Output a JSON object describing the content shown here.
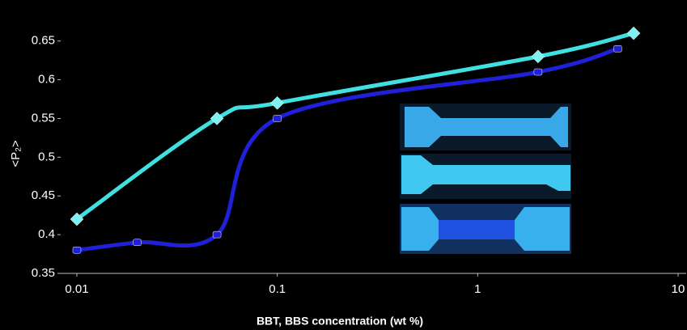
{
  "chart_data": {
    "type": "line",
    "x_label": "BBT, BBS concentration (wt %)",
    "y_label": "<P₂>",
    "xscale": "log",
    "xlim": [
      0.01,
      10
    ],
    "xticks": [
      0.01,
      0.1,
      1,
      10
    ],
    "ylim": [
      0.35,
      0.68
    ],
    "yticks": [
      0.35,
      0.4,
      0.45,
      0.5,
      0.55,
      0.6,
      0.65
    ],
    "series": [
      {
        "color": "#40e0e0",
        "marker": "diamond",
        "x": [
          0.01,
          0.05,
          0.1,
          2,
          6
        ],
        "values": [
          0.42,
          0.55,
          0.57,
          0.63,
          0.66
        ]
      },
      {
        "color": "#2020d8",
        "marker": "circle",
        "x": [
          0.01,
          0.02,
          0.05,
          0.1,
          2,
          5
        ],
        "values": [
          0.38,
          0.39,
          0.4,
          0.55,
          0.61,
          0.64
        ]
      }
    ]
  }
}
